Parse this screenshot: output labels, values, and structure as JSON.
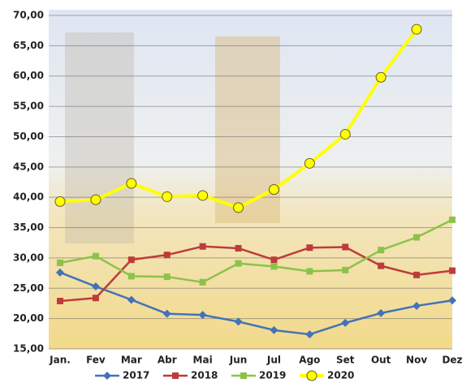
{
  "chart_data": {
    "type": "line",
    "categories": [
      "Jan.",
      "Fev",
      "Mar",
      "Abr",
      "Mai",
      "Jun",
      "Jul",
      "Ago",
      "Set",
      "Out",
      "Nov",
      "Dez"
    ],
    "series": [
      {
        "name": "2017",
        "color": "#4472b8",
        "marker": "diamond",
        "values": [
          27.6,
          25.3,
          23.1,
          20.8,
          20.6,
          19.5,
          18.1,
          17.4,
          19.3,
          20.9,
          22.1,
          23.0
        ]
      },
      {
        "name": "2018",
        "color": "#be3b3b",
        "marker": "square",
        "values": [
          22.9,
          23.4,
          29.7,
          30.5,
          31.9,
          31.6,
          29.7,
          31.7,
          31.8,
          28.7,
          27.2,
          27.9
        ]
      },
      {
        "name": "2019",
        "color": "#8cc24a",
        "marker": "square",
        "values": [
          29.2,
          30.3,
          27.0,
          26.9,
          26.0,
          29.1,
          28.6,
          27.8,
          28.0,
          31.3,
          33.4,
          36.3
        ]
      },
      {
        "name": "2020",
        "color": "#ffff00",
        "marker": "circle",
        "values": [
          39.3,
          39.6,
          42.3,
          40.1,
          40.3,
          38.3,
          41.3,
          45.6,
          50.4,
          59.8,
          67.7,
          null
        ]
      }
    ],
    "ylim": [
      15,
      70
    ],
    "yticks": [
      {
        "value": 15,
        "label": "15,00"
      },
      {
        "value": 20,
        "label": "20,00"
      },
      {
        "value": 25,
        "label": "25,00"
      },
      {
        "value": 30,
        "label": "30,00"
      },
      {
        "value": 35,
        "label": "35,00"
      },
      {
        "value": 40,
        "label": "40,00"
      },
      {
        "value": 45,
        "label": "45,00"
      },
      {
        "value": 50,
        "label": "50,00"
      },
      {
        "value": 55,
        "label": "55,00"
      },
      {
        "value": 60,
        "label": "60,00"
      },
      {
        "value": 65,
        "label": "65,00"
      },
      {
        "value": 70,
        "label": "70,00"
      }
    ],
    "grid": true,
    "legend": "bottom"
  }
}
